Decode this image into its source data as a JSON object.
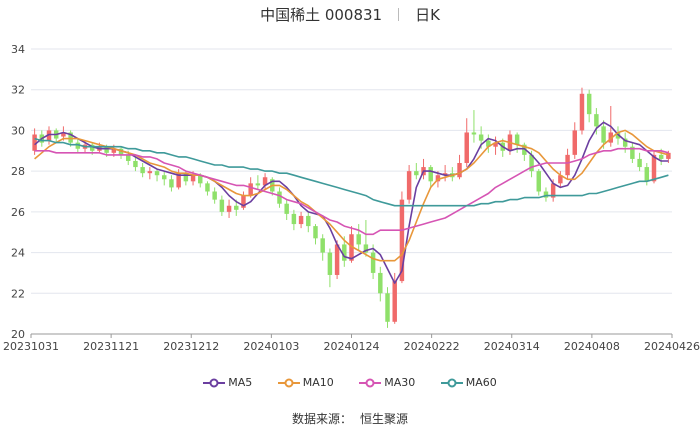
{
  "title": {
    "stock": "中国稀土 000831",
    "period": "日K"
  },
  "source": {
    "label": "数据来源：",
    "provider": "恒生聚源"
  },
  "colors": {
    "up": "#f06a6a",
    "down": "#8fe06a",
    "MA5": "#6b3fa0",
    "MA10": "#e8973a",
    "MA30": "#d655b4",
    "MA60": "#3f9a9a"
  },
  "chart_data": {
    "type": "candlestick",
    "ylim": [
      20,
      34
    ],
    "y_ticks": [
      "20",
      "22",
      "24",
      "26",
      "28",
      "30",
      "32",
      "34"
    ],
    "x_ticks": [
      "20231031",
      "20231121",
      "20231212",
      "20240103",
      "20240124",
      "20240222",
      "20240314",
      "20240408",
      "20240426"
    ],
    "grid": true,
    "legend_position": "bottom",
    "series": [
      {
        "name": "MA5",
        "values": [
          29.3,
          29.6,
          29.8,
          29.8,
          29.9,
          29.8,
          29.6,
          29.4,
          29.2,
          29.1,
          29.1,
          29.1,
          29.0,
          28.9,
          28.7,
          28.5,
          28.3,
          28.1,
          28.0,
          27.9,
          27.8,
          27.8,
          27.8,
          27.8,
          27.7,
          27.5,
          27.2,
          26.8,
          26.5,
          26.3,
          26.5,
          26.9,
          27.3,
          27.5,
          27.5,
          27.2,
          26.8,
          26.3,
          26.0,
          25.9,
          25.8,
          25.2,
          24.4,
          23.8,
          23.7,
          23.9,
          24.1,
          24.2,
          23.9,
          23.2,
          22.5,
          23.1,
          25.3,
          27.2,
          28.0,
          28.0,
          27.9,
          27.8,
          27.8,
          27.9,
          28.1,
          28.6,
          29.3,
          29.6,
          29.5,
          29.2,
          29.0,
          29.1,
          29.1,
          28.8,
          28.4,
          27.9,
          27.4,
          27.2,
          27.3,
          27.8,
          28.6,
          29.5,
          30.1,
          30.4,
          30.2,
          29.8,
          29.5,
          29.4,
          29.3,
          29.0,
          28.7,
          28.5,
          28.5
        ]
      },
      {
        "name": "MA10",
        "values": [
          28.6,
          28.9,
          29.2,
          29.4,
          29.6,
          29.6,
          29.6,
          29.5,
          29.4,
          29.3,
          29.2,
          29.1,
          29.0,
          28.9,
          28.8,
          28.6,
          28.4,
          28.3,
          28.2,
          28.0,
          27.9,
          27.9,
          27.8,
          27.8,
          27.7,
          27.5,
          27.3,
          27.1,
          26.9,
          26.8,
          26.8,
          26.9,
          27.1,
          27.3,
          27.3,
          27.1,
          26.8,
          26.5,
          26.3,
          26.0,
          25.7,
          25.4,
          25.0,
          24.6,
          24.3,
          24.1,
          23.9,
          23.7,
          23.6,
          23.6,
          23.6,
          23.9,
          24.6,
          25.5,
          26.4,
          27.2,
          27.6,
          27.7,
          27.8,
          27.9,
          28.1,
          28.4,
          28.8,
          29.2,
          29.4,
          29.5,
          29.4,
          29.3,
          29.2,
          29.1,
          28.9,
          28.5,
          28.1,
          27.8,
          27.6,
          27.6,
          27.9,
          28.4,
          28.9,
          29.3,
          29.6,
          29.9,
          30.0,
          29.8,
          29.5,
          29.2,
          29.0,
          28.9,
          28.8
        ]
      },
      {
        "name": "MA30",
        "values": [
          29.0,
          29.0,
          29.0,
          28.9,
          28.9,
          28.9,
          28.9,
          28.9,
          28.9,
          28.9,
          28.8,
          28.8,
          28.8,
          28.8,
          28.8,
          28.7,
          28.7,
          28.6,
          28.4,
          28.3,
          28.2,
          28.0,
          27.9,
          27.8,
          27.7,
          27.6,
          27.5,
          27.4,
          27.3,
          27.3,
          27.2,
          27.1,
          27.0,
          26.9,
          26.8,
          26.6,
          26.5,
          26.4,
          26.2,
          26.0,
          25.8,
          25.6,
          25.5,
          25.3,
          25.2,
          25.1,
          24.9,
          24.9,
          25.1,
          25.1,
          25.1,
          25.1,
          25.2,
          25.3,
          25.4,
          25.5,
          25.6,
          25.7,
          25.9,
          26.1,
          26.3,
          26.5,
          26.7,
          26.9,
          27.2,
          27.4,
          27.6,
          27.8,
          28.0,
          28.2,
          28.3,
          28.4,
          28.4,
          28.4,
          28.4,
          28.5,
          28.6,
          28.8,
          28.9,
          29.0,
          29.0,
          29.1,
          29.1,
          29.1,
          29.1,
          29.0,
          29.0,
          29.0,
          28.9
        ]
      },
      {
        "name": "MA60",
        "values": [
          29.6,
          29.5,
          29.5,
          29.4,
          29.4,
          29.3,
          29.3,
          29.2,
          29.2,
          29.2,
          29.2,
          29.2,
          29.2,
          29.1,
          29.1,
          29.0,
          29.0,
          28.9,
          28.9,
          28.8,
          28.7,
          28.7,
          28.6,
          28.5,
          28.4,
          28.3,
          28.3,
          28.2,
          28.2,
          28.2,
          28.1,
          28.1,
          28.0,
          28.0,
          27.9,
          27.9,
          27.8,
          27.7,
          27.6,
          27.5,
          27.4,
          27.3,
          27.2,
          27.1,
          27.0,
          26.9,
          26.8,
          26.6,
          26.5,
          26.4,
          26.3,
          26.3,
          26.3,
          26.3,
          26.3,
          26.3,
          26.3,
          26.3,
          26.3,
          26.3,
          26.3,
          26.3,
          26.4,
          26.4,
          26.5,
          26.5,
          26.6,
          26.6,
          26.7,
          26.7,
          26.7,
          26.8,
          26.8,
          26.8,
          26.8,
          26.8,
          26.8,
          26.9,
          26.9,
          27.0,
          27.1,
          27.2,
          27.3,
          27.4,
          27.5,
          27.5,
          27.6,
          27.7,
          27.8
        ]
      }
    ],
    "candles": [
      [
        29.0,
        29.8,
        30.1,
        28.8
      ],
      [
        29.8,
        29.4,
        30.0,
        29.2
      ],
      [
        29.5,
        30.0,
        30.2,
        29.3
      ],
      [
        30.0,
        29.6,
        30.1,
        29.4
      ],
      [
        29.7,
        29.9,
        30.2,
        29.5
      ],
      [
        29.9,
        29.4,
        30.0,
        29.2
      ],
      [
        29.4,
        29.1,
        29.6,
        28.9
      ],
      [
        29.1,
        29.3,
        29.5,
        28.9
      ],
      [
        29.3,
        29.0,
        29.4,
        28.8
      ],
      [
        29.0,
        29.2,
        29.4,
        28.9
      ],
      [
        29.2,
        28.9,
        29.3,
        28.7
      ],
      [
        28.9,
        29.1,
        29.3,
        28.7
      ],
      [
        29.1,
        28.8,
        29.2,
        28.6
      ],
      [
        28.8,
        28.5,
        29.0,
        28.3
      ],
      [
        28.5,
        28.2,
        28.7,
        28.0
      ],
      [
        28.2,
        27.9,
        28.4,
        27.7
      ],
      [
        27.9,
        28.0,
        28.2,
        27.6
      ],
      [
        28.0,
        27.8,
        28.1,
        27.5
      ],
      [
        27.8,
        27.6,
        28.0,
        27.3
      ],
      [
        27.6,
        27.2,
        27.8,
        27.0
      ],
      [
        27.2,
        27.9,
        28.1,
        27.1
      ],
      [
        27.9,
        27.5,
        28.0,
        27.3
      ],
      [
        27.5,
        27.8,
        28.0,
        27.3
      ],
      [
        27.8,
        27.4,
        27.9,
        27.2
      ],
      [
        27.4,
        27.0,
        27.5,
        26.8
      ],
      [
        27.0,
        26.6,
        27.2,
        26.4
      ],
      [
        26.6,
        26.0,
        26.8,
        25.8
      ],
      [
        26.0,
        26.3,
        26.6,
        25.7
      ],
      [
        26.3,
        26.1,
        26.6,
        25.8
      ],
      [
        26.2,
        26.8,
        27.0,
        26.1
      ],
      [
        26.8,
        27.4,
        27.7,
        26.7
      ],
      [
        27.4,
        27.3,
        27.8,
        27.1
      ],
      [
        27.3,
        27.7,
        27.9,
        27.1
      ],
      [
        27.6,
        27.0,
        27.7,
        26.8
      ],
      [
        27.0,
        26.4,
        27.2,
        26.2
      ],
      [
        26.4,
        25.9,
        26.6,
        25.6
      ],
      [
        25.9,
        25.4,
        26.1,
        25.1
      ],
      [
        25.4,
        25.8,
        26.0,
        25.2
      ],
      [
        25.8,
        25.3,
        26.0,
        25.0
      ],
      [
        25.3,
        24.7,
        25.4,
        24.4
      ],
      [
        24.7,
        24.0,
        24.9,
        23.6
      ],
      [
        24.0,
        22.9,
        24.2,
        22.3
      ],
      [
        22.9,
        24.4,
        24.6,
        22.7
      ],
      [
        24.4,
        23.6,
        24.8,
        23.3
      ],
      [
        23.6,
        24.9,
        25.3,
        23.5
      ],
      [
        24.9,
        24.4,
        25.4,
        24.1
      ],
      [
        24.4,
        24.0,
        25.6,
        23.8
      ],
      [
        24.0,
        23.0,
        24.4,
        22.7
      ],
      [
        23.0,
        22.0,
        23.3,
        21.6
      ],
      [
        22.0,
        20.6,
        22.3,
        20.3
      ],
      [
        20.6,
        22.6,
        23.0,
        20.5
      ],
      [
        22.6,
        26.6,
        27.0,
        22.5
      ],
      [
        26.6,
        28.0,
        28.3,
        26.4
      ],
      [
        28.0,
        27.8,
        28.4,
        27.6
      ],
      [
        27.8,
        28.2,
        28.6,
        27.6
      ],
      [
        28.2,
        27.5,
        28.3,
        27.2
      ],
      [
        27.5,
        27.8,
        28.0,
        27.2
      ],
      [
        27.8,
        27.9,
        28.3,
        27.5
      ],
      [
        27.9,
        27.7,
        28.2,
        27.5
      ],
      [
        27.7,
        28.4,
        28.8,
        27.6
      ],
      [
        28.4,
        29.9,
        30.6,
        28.2
      ],
      [
        29.9,
        29.8,
        31.0,
        29.4
      ],
      [
        29.8,
        29.5,
        30.2,
        29.1
      ],
      [
        29.5,
        29.2,
        29.8,
        28.9
      ],
      [
        29.2,
        29.4,
        29.7,
        28.8
      ],
      [
        29.4,
        29.0,
        29.6,
        28.7
      ],
      [
        29.0,
        29.8,
        30.0,
        28.8
      ],
      [
        29.8,
        29.3,
        29.9,
        28.9
      ],
      [
        29.3,
        28.8,
        29.4,
        28.5
      ],
      [
        28.8,
        28.0,
        29.0,
        27.7
      ],
      [
        28.0,
        27.0,
        28.1,
        26.8
      ],
      [
        27.0,
        26.7,
        27.2,
        26.5
      ],
      [
        26.7,
        27.4,
        27.6,
        26.5
      ],
      [
        27.4,
        27.8,
        28.0,
        27.2
      ],
      [
        27.8,
        28.8,
        29.1,
        27.6
      ],
      [
        28.8,
        30.0,
        30.4,
        28.6
      ],
      [
        30.0,
        31.8,
        32.1,
        29.8
      ],
      [
        31.8,
        30.8,
        32.0,
        30.4
      ],
      [
        30.8,
        30.2,
        31.1,
        29.8
      ],
      [
        30.2,
        29.4,
        30.5,
        29.1
      ],
      [
        29.4,
        29.9,
        31.2,
        29.2
      ],
      [
        29.9,
        29.6,
        30.2,
        29.3
      ],
      [
        29.6,
        29.2,
        29.9,
        28.9
      ],
      [
        29.2,
        28.6,
        29.4,
        28.4
      ],
      [
        28.6,
        28.2,
        28.9,
        28.0
      ],
      [
        28.2,
        27.5,
        28.4,
        27.3
      ],
      [
        27.5,
        28.8,
        29.0,
        27.4
      ],
      [
        28.8,
        28.6,
        29.1,
        28.3
      ],
      [
        28.6,
        28.9,
        29.0,
        28.4
      ]
    ]
  }
}
